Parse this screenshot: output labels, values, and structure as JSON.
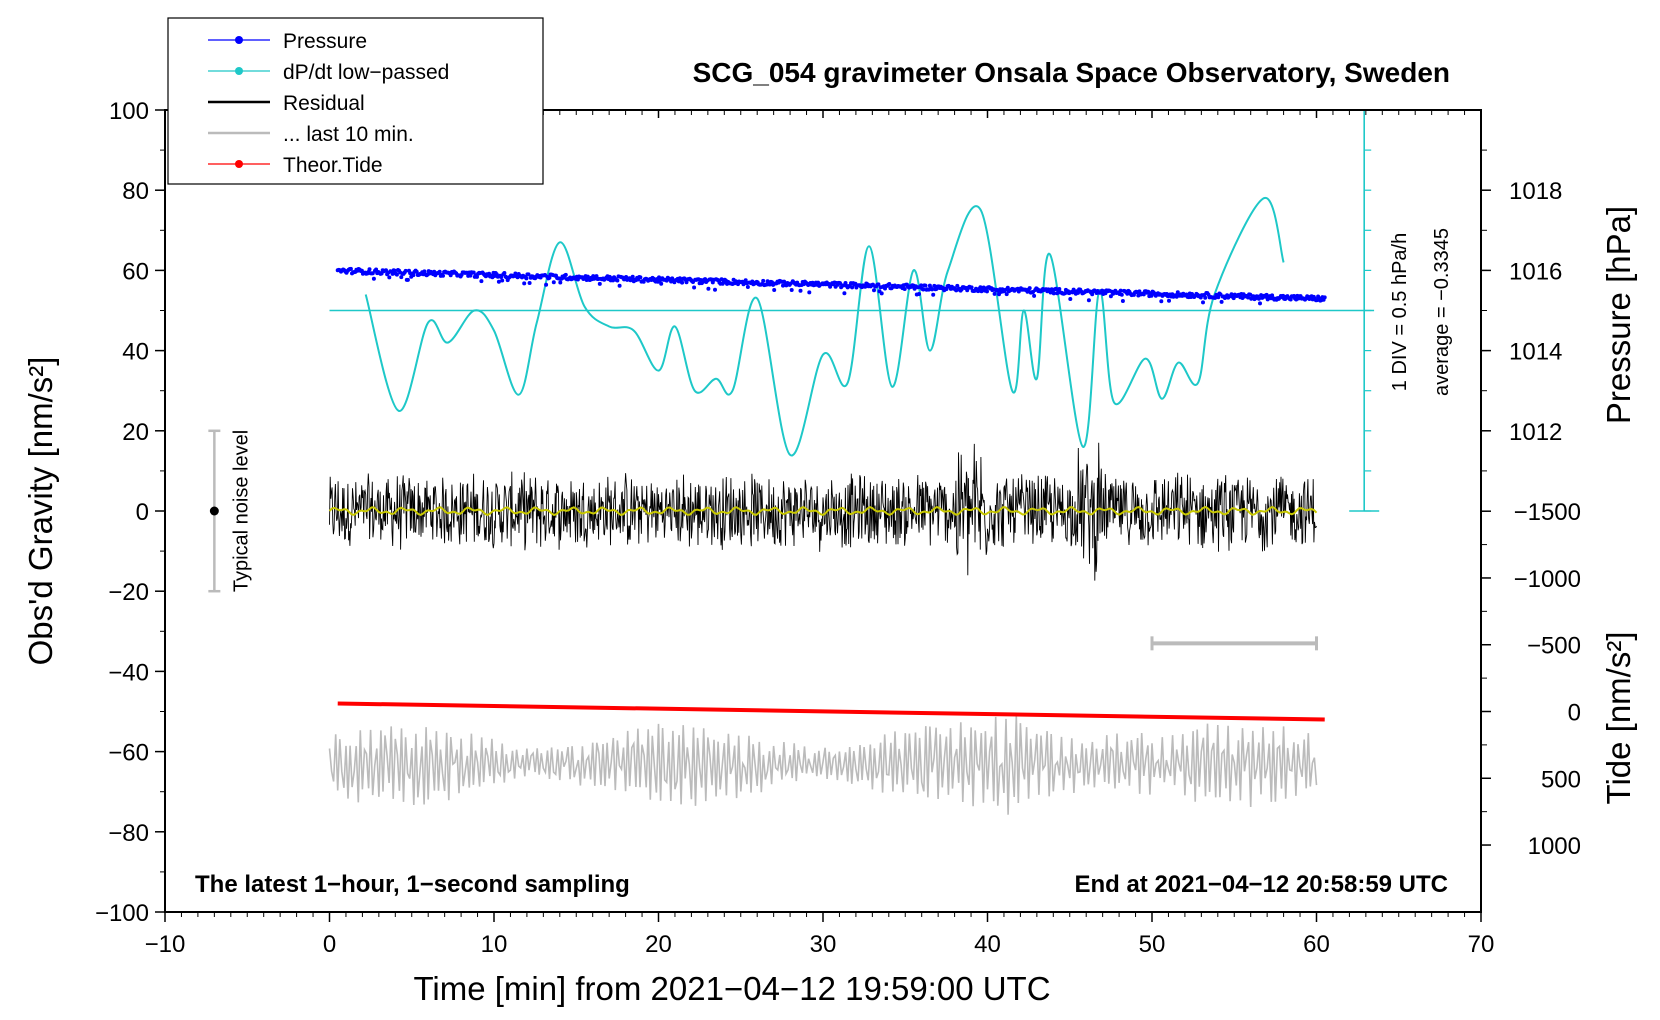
{
  "chart_data": {
    "type": "line",
    "title": "SCG_054 gravimeter Onsala Space Observatory, Sweden",
    "xlabel": "Time [min] from 2021−04−12 19:59:00 UTC",
    "ylabel_left": "Obs'd Gravity [nm/s²]",
    "ylabel_right_top": "Pressure [hPa]",
    "ylabel_right_bottom": "Tide [nm/s²]",
    "xlim": [
      -10,
      70
    ],
    "ylim_left": [
      -100,
      100
    ],
    "x_ticks": [
      "−10",
      "0",
      "10",
      "20",
      "30",
      "40",
      "50",
      "60",
      "70"
    ],
    "y_left_ticks": [
      "100",
      "80",
      "60",
      "40",
      "20",
      "0",
      "−20",
      "−40",
      "−60",
      "−80",
      "−100"
    ],
    "pressure_ticks": [
      "1018",
      "1016",
      "1014",
      "1012"
    ],
    "tide_ticks": [
      "1000",
      "500",
      "0",
      "−500",
      "−1000",
      "−1500"
    ],
    "pressure_axis": {
      "left_value_at_1016hPa": 60,
      "left_units_per_hPa": 10
    },
    "tide_axis": {
      "left_value_at_0": -50,
      "left_units_per_1000": -33.3
    },
    "legend": {
      "placement": "top-left",
      "items": [
        {
          "label": "Pressure",
          "color": "#0000ff",
          "marker": true
        },
        {
          "label": "dP/dt low−passed",
          "color": "#1ec8c8",
          "marker": true
        },
        {
          "label": "Residual",
          "color": "#000000",
          "marker": false
        },
        {
          "label": "... last 10 min.",
          "color": "#bbbbbb",
          "marker": false
        },
        {
          "label": "Theor.Tide",
          "color": "#ff0000",
          "marker": true
        }
      ]
    },
    "series": [
      {
        "name": "Pressure",
        "color": "#0000ff",
        "units": "hPa",
        "x_range": [
          0.5,
          60.5
        ],
        "start_value": 1016.0,
        "end_value": 1015.3,
        "scatter": 0.12
      },
      {
        "name": "dP/dt low−passed",
        "color": "#1ec8c8",
        "units": "gravity-axis",
        "x": [
          2.2,
          4.2,
          6.0,
          7.2,
          8.8,
          10.0,
          11.5,
          12.6,
          14.0,
          15.5,
          17.0,
          18.5,
          20.0,
          21.0,
          22.2,
          23.5,
          24.5,
          26.0,
          28.0,
          30.0,
          31.5,
          32.8,
          34.2,
          35.5,
          36.5,
          37.6,
          39.6,
          41.5,
          42.2,
          43.0,
          43.8,
          45.8,
          46.8,
          47.7,
          49.6,
          50.6,
          51.6,
          52.8,
          53.8,
          56.8,
          58.0
        ],
        "y": [
          54,
          25,
          47,
          42,
          50,
          45,
          29,
          47,
          67,
          51,
          46,
          45,
          35,
          46,
          30,
          33,
          30,
          53,
          14,
          39,
          32,
          66,
          31,
          60,
          40,
          60,
          75,
          30,
          50,
          33,
          64,
          16,
          55,
          27,
          38,
          28,
          37,
          32,
          54,
          78,
          62
        ]
      },
      {
        "name": "Residual",
        "color": "#000000",
        "x_range": [
          0,
          60
        ],
        "y_range": [
          -26,
          22
        ],
        "avg_amplitude": 8
      },
      {
        "name": "Residual smoothed",
        "color": "#c8c800",
        "x_range": [
          0,
          60
        ],
        "center": 0
      },
      {
        "name": "... last 10 min.",
        "color": "#bbbbbb",
        "x_range": [
          0,
          60
        ],
        "center": -63,
        "y_range": [
          -79,
          -46
        ]
      },
      {
        "name": "Theor.Tide",
        "color": "#ff0000",
        "units": "nm/s²",
        "x": [
          0.5,
          60.5
        ],
        "y": [
          -48,
          -52
        ]
      }
    ],
    "dpdt_reference": {
      "y": 50,
      "div_label": "1 DIV = 0.5 hPa/h",
      "average_label": "average = −0.3345"
    },
    "noise_bar": {
      "x": -7,
      "y_range": [
        -20,
        20
      ],
      "label": "Typical noise level"
    },
    "ten_min_bar": {
      "x_range": [
        50,
        60
      ],
      "y": -33
    },
    "notes": {
      "left": "The latest 1−hour, 1−second sampling",
      "right": "End at 2021−04−12 20:58:59 UTC"
    }
  }
}
